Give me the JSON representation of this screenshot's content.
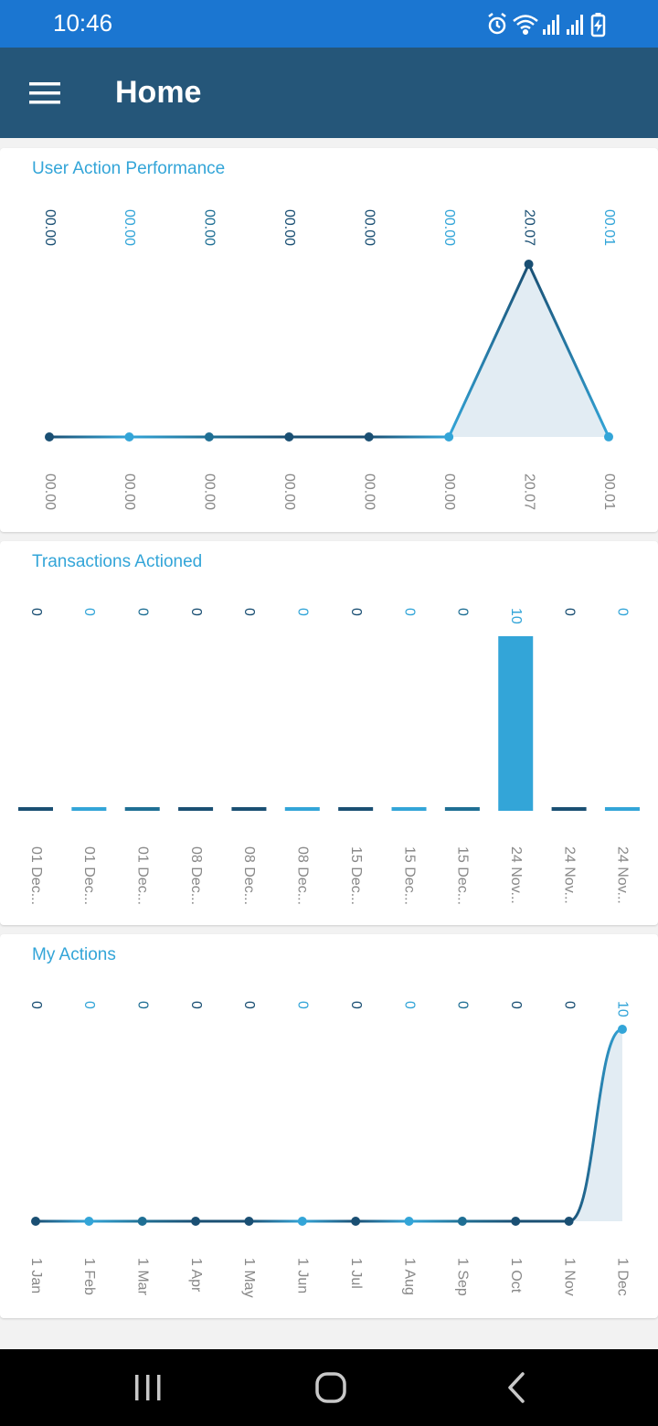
{
  "status": {
    "time": "10:46",
    "icons": [
      "alarm-icon",
      "wifi-icon",
      "signal-icon",
      "signal-icon",
      "battery-charging-icon"
    ]
  },
  "app_bar": {
    "title": "Home",
    "menu_icon": "hamburger-menu-icon"
  },
  "colors": {
    "status_bar": "#1b76d1",
    "app_bar": "#255679",
    "dark": "#1a4f73",
    "mid": "#1f6f94",
    "light": "#33a5d8",
    "fill": "#dde9f1"
  },
  "cards": {
    "user_action": {
      "title": "User Action Performance"
    },
    "transactions": {
      "title": "Transactions Actioned"
    },
    "my_actions": {
      "title": "My Actions"
    }
  },
  "chart_data": [
    {
      "type": "area",
      "title": "User Action Performance",
      "categories": [
        "00.00",
        "00.00",
        "00.00",
        "00.00",
        "00.00",
        "00.00",
        "20.07",
        "00.01"
      ],
      "top_labels": [
        "00.00",
        "00.00",
        "00.00",
        "00.00",
        "00.00",
        "00.00",
        "20.07",
        "00.01"
      ],
      "values": [
        0,
        0,
        0,
        0,
        0,
        0,
        20.07,
        0.01
      ],
      "ylim": [
        0,
        20.07
      ]
    },
    {
      "type": "bar",
      "title": "Transactions Actioned",
      "categories": [
        "01 Dec...",
        "01 Dec...",
        "01 Dec...",
        "08 Dec...",
        "08 Dec...",
        "08 Dec...",
        "15 Dec...",
        "15 Dec...",
        "15 Dec...",
        "24 Nov...",
        "24 Nov...",
        "24 Nov..."
      ],
      "values": [
        0,
        0,
        0,
        0,
        0,
        0,
        0,
        0,
        0,
        10,
        0,
        0
      ],
      "ylim": [
        0,
        10
      ]
    },
    {
      "type": "area",
      "title": "My Actions",
      "categories": [
        "1 Jan",
        "1 Feb",
        "1 Mar",
        "1 Apr",
        "1 May",
        "1 Jun",
        "1 Jul",
        "1 Aug",
        "1 Sep",
        "1 Oct",
        "1 Nov",
        "1 Dec"
      ],
      "values": [
        0,
        0,
        0,
        0,
        0,
        0,
        0,
        0,
        0,
        0,
        0,
        10
      ],
      "ylim": [
        0,
        10
      ]
    }
  ],
  "nav": {
    "recents_icon": "recents-icon",
    "home_icon": "home-icon",
    "back_icon": "back-icon"
  }
}
